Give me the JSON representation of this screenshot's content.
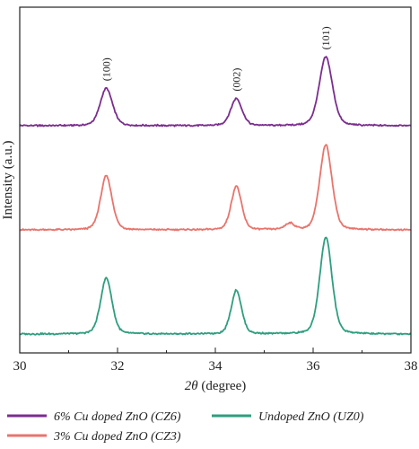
{
  "chart_data": {
    "type": "line",
    "xlabel_symbol": "2θ",
    "xlabel_unit": " (degree)",
    "ylabel": "Intensity (a.u.)",
    "xlim": [
      30,
      38
    ],
    "x_ticks": [
      30,
      32,
      34,
      36,
      38
    ],
    "y_ticks_shown": false,
    "grid": false,
    "legend_position": "bottom",
    "peak_labels": [
      {
        "label": "(100)",
        "x": 31.77
      },
      {
        "label": "(002)",
        "x": 34.43
      },
      {
        "label": "(101)",
        "x": 36.26
      }
    ],
    "series": [
      {
        "name": "6% Cu doped ZnO (CZ6)",
        "color": "#7b2d8e",
        "baseline": 2.0,
        "noise": 0.012,
        "peaks": [
          {
            "x": 31.77,
            "height": 0.36,
            "width": 0.13
          },
          {
            "x": 34.43,
            "height": 0.26,
            "width": 0.12
          },
          {
            "x": 36.26,
            "height": 0.66,
            "width": 0.14
          }
        ]
      },
      {
        "name": "3% Cu doped ZnO (CZ3)",
        "color": "#e8746c",
        "baseline": 1.0,
        "noise": 0.012,
        "peaks": [
          {
            "x": 31.77,
            "height": 0.52,
            "width": 0.12
          },
          {
            "x": 34.43,
            "height": 0.42,
            "width": 0.11
          },
          {
            "x": 35.52,
            "height": 0.06,
            "width": 0.1
          },
          {
            "x": 36.26,
            "height": 0.82,
            "width": 0.13
          }
        ]
      },
      {
        "name": "Undoped ZnO (UZ0)",
        "color": "#2e9e7e",
        "baseline": 0.0,
        "noise": 0.012,
        "peaks": [
          {
            "x": 31.77,
            "height": 0.54,
            "width": 0.12
          },
          {
            "x": 34.43,
            "height": 0.42,
            "width": 0.11
          },
          {
            "x": 36.26,
            "height": 0.93,
            "width": 0.13
          }
        ]
      }
    ]
  }
}
